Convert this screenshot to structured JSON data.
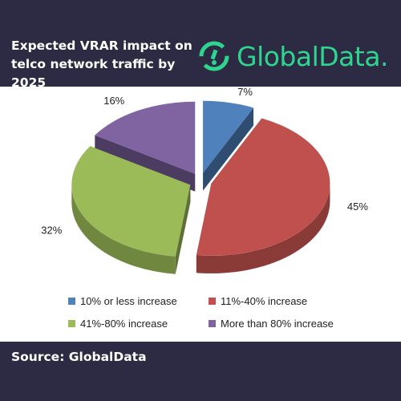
{
  "header": {
    "title": "Expected VRAR impact on telco network traffic by 2025",
    "brand": "GlobalData.",
    "brand_color": "#2fd58f",
    "background": "#2d2a43"
  },
  "footer": {
    "source": "Source: GlobalData"
  },
  "chart_data": {
    "type": "pie",
    "style": "3d-exploded",
    "categories": [
      "10% or less increase",
      "11%-40% increase",
      "41%-80% increase",
      "More than 80% increase"
    ],
    "values": [
      7,
      45,
      32,
      16
    ],
    "labels": [
      "7%",
      "45%",
      "32%",
      "16%"
    ],
    "colors": [
      "#4f81bd",
      "#c0504d",
      "#9bbb59",
      "#8064a2"
    ],
    "legend_position": "bottom"
  }
}
